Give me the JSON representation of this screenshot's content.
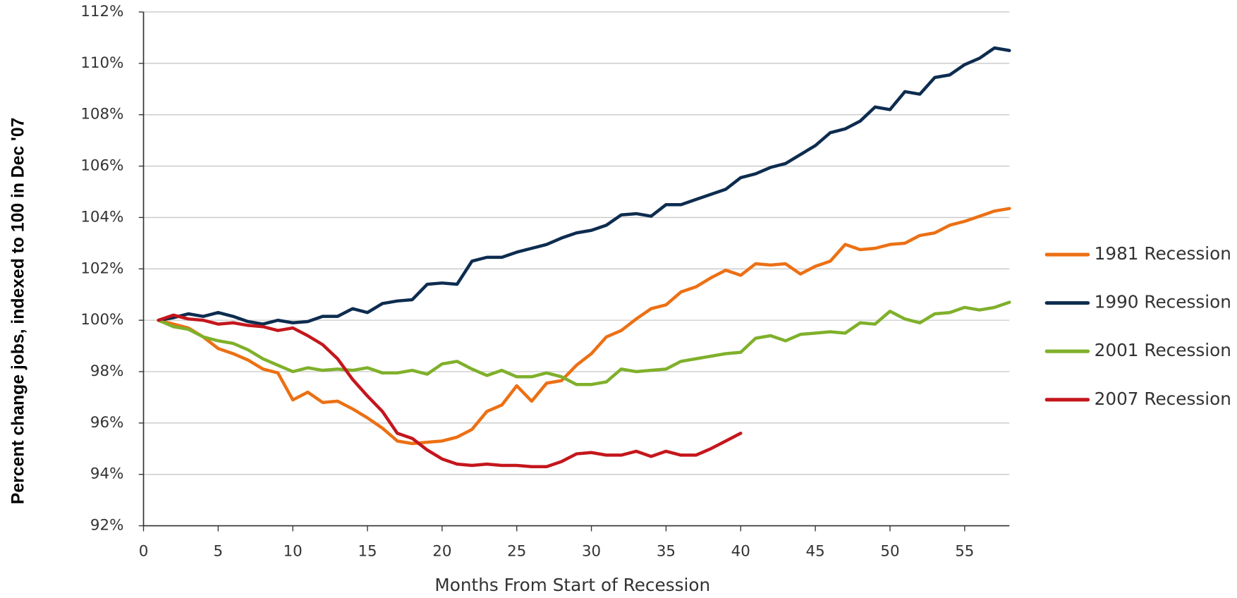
{
  "chart_data": {
    "type": "line",
    "x_label": "Months From Start of Recession",
    "y_label": "Percent change jobs, indexed to 100 in Dec '07",
    "x": [
      1,
      2,
      3,
      4,
      5,
      6,
      7,
      8,
      9,
      10,
      11,
      12,
      13,
      14,
      15,
      16,
      17,
      18,
      19,
      20,
      21,
      22,
      23,
      24,
      25,
      26,
      27,
      28,
      29,
      30,
      31,
      32,
      33,
      34,
      35,
      36,
      37,
      38,
      39,
      40,
      41,
      42,
      43,
      44,
      45,
      46,
      47,
      48,
      49,
      50,
      51,
      52,
      53,
      54,
      55,
      56,
      57,
      58
    ],
    "series": [
      {
        "name": "1981 Recession",
        "color": "#ec7014",
        "values": [
          100,
          99.85,
          99.7,
          99.35,
          98.9,
          98.7,
          98.45,
          98.1,
          97.95,
          96.9,
          97.2,
          96.8,
          96.85,
          96.55,
          96.2,
          95.8,
          95.3,
          95.2,
          95.25,
          95.3,
          95.45,
          95.75,
          96.45,
          96.7,
          97.45,
          96.85,
          97.55,
          97.65,
          98.25,
          98.7,
          99.35,
          99.6,
          100.05,
          100.45,
          100.6,
          101.1,
          101.3,
          101.65,
          101.95,
          101.75,
          102.2,
          102.15,
          102.2,
          101.8,
          102.1,
          102.3,
          102.95,
          102.75,
          102.8,
          102.95,
          103.0,
          103.3,
          103.4,
          103.7,
          103.85,
          104.05,
          104.25,
          104.35
        ]
      },
      {
        "name": "1990 Recession",
        "color": "#0d2c4f",
        "values": [
          100,
          100.1,
          100.25,
          100.15,
          100.3,
          100.15,
          99.95,
          99.85,
          100.0,
          99.9,
          99.95,
          100.15,
          100.15,
          100.45,
          100.3,
          100.65,
          100.75,
          100.8,
          101.4,
          101.45,
          101.4,
          102.3,
          102.45,
          102.45,
          102.65,
          102.8,
          102.95,
          103.2,
          103.4,
          103.5,
          103.7,
          104.1,
          104.15,
          104.05,
          104.5,
          104.5,
          104.7,
          104.9,
          105.1,
          105.55,
          105.7,
          105.95,
          106.1,
          106.45,
          106.8,
          107.3,
          107.45,
          107.75,
          108.3,
          108.2,
          108.9,
          108.8,
          109.45,
          109.55,
          109.95,
          110.2,
          110.6,
          110.5
        ]
      },
      {
        "name": "2001 Recession",
        "color": "#7fb02b",
        "values": [
          100,
          99.75,
          99.65,
          99.35,
          99.2,
          99.1,
          98.85,
          98.5,
          98.25,
          98.0,
          98.15,
          98.05,
          98.1,
          98.05,
          98.15,
          97.95,
          97.95,
          98.05,
          97.9,
          98.3,
          98.4,
          98.1,
          97.85,
          98.05,
          97.8,
          97.8,
          97.95,
          97.8,
          97.5,
          97.5,
          97.6,
          98.1,
          98.0,
          98.05,
          98.1,
          98.4,
          98.5,
          98.6,
          98.7,
          98.75,
          99.3,
          99.4,
          99.2,
          99.45,
          99.5,
          99.55,
          99.5,
          99.9,
          99.85,
          100.35,
          100.05,
          99.9,
          100.25,
          100.3,
          100.5,
          100.4,
          100.5,
          100.7
        ]
      },
      {
        "name": "2007 Recession",
        "color": "#c4161c",
        "values": [
          100,
          100.2,
          100.05,
          100.0,
          99.85,
          99.9,
          99.8,
          99.75,
          99.6,
          99.7,
          99.4,
          99.05,
          98.5,
          97.7,
          97.05,
          96.45,
          95.6,
          95.4,
          94.95,
          94.6,
          94.4,
          94.35,
          94.4,
          94.35,
          94.35,
          94.3,
          94.3,
          94.5,
          94.8,
          94.85,
          94.75,
          94.75,
          94.9,
          94.7,
          94.9,
          94.75,
          94.75,
          95.0,
          95.3,
          95.6,
          null,
          null,
          null,
          null,
          null,
          null,
          null,
          null,
          null,
          null,
          null,
          null,
          null,
          null,
          null,
          null,
          null,
          null
        ]
      }
    ],
    "xlim": [
      0,
      58
    ],
    "ylim": [
      92,
      112
    ],
    "xticks": [
      0,
      5,
      10,
      15,
      20,
      25,
      30,
      35,
      40,
      45,
      50,
      55
    ],
    "yticks": [
      {
        "value": 92,
        "label": "92%"
      },
      {
        "value": 94,
        "label": "94%"
      },
      {
        "value": 96,
        "label": "96%"
      },
      {
        "value": 98,
        "label": "98%"
      },
      {
        "value": 100,
        "label": "100%"
      },
      {
        "value": 102,
        "label": "102%"
      },
      {
        "value": 104,
        "label": "104%"
      },
      {
        "value": 106,
        "label": "106%"
      },
      {
        "value": 108,
        "label": "108%"
      },
      {
        "value": 110,
        "label": "110%"
      },
      {
        "value": 112,
        "label": "112%"
      }
    ],
    "grid": true,
    "legend": "right"
  }
}
